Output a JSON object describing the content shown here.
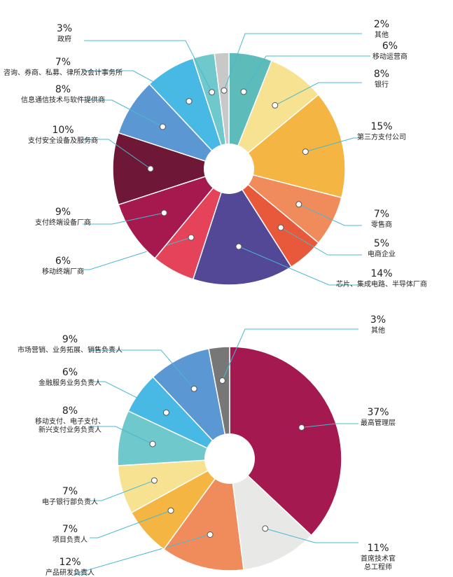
{
  "chart_data": [
    {
      "type": "pie",
      "slices": [
        {
          "percent": "6%",
          "value": 6,
          "lines": [
            "移动运营商"
          ],
          "color": "#5dbcb9"
        },
        {
          "percent": "8%",
          "value": 8,
          "lines": [
            "银行"
          ],
          "color": "#f6e291"
        },
        {
          "percent": "15%",
          "value": 15,
          "lines": [
            "第三方支付公司"
          ],
          "color": "#f4b542"
        },
        {
          "percent": "7%",
          "value": 7,
          "lines": [
            "零售商"
          ],
          "color": "#f08c5b"
        },
        {
          "percent": "5%",
          "value": 5,
          "lines": [
            "电商企业"
          ],
          "color": "#e8593c"
        },
        {
          "percent": "14%",
          "value": 14,
          "lines": [
            "芯片、集成电路、半导体厂商"
          ],
          "color": "#524896"
        },
        {
          "percent": "6%",
          "value": 6,
          "lines": [
            "移动终端厂商"
          ],
          "color": "#e5435a"
        },
        {
          "percent": "9%",
          "value": 9,
          "lines": [
            "支付终端设备厂商"
          ],
          "color": "#a6194f"
        },
        {
          "percent": "10%",
          "value": 10,
          "lines": [
            "支付安全设备及服务商"
          ],
          "color": "#6e1736"
        },
        {
          "percent": "8%",
          "value": 8,
          "lines": [
            "信息通信技术与软件提供商"
          ],
          "color": "#5b97d3"
        },
        {
          "percent": "7%",
          "value": 7,
          "lines": [
            "咨询、券商、私募、律所及会计事务所"
          ],
          "color": "#48b9e5"
        },
        {
          "percent": "3%",
          "value": 3,
          "lines": [
            "政府"
          ],
          "color": "#6fc8cb"
        },
        {
          "percent": "2%",
          "value": 2,
          "lines": [
            "其他"
          ],
          "color": "#c8c8c8"
        }
      ]
    },
    {
      "type": "pie",
      "slices": [
        {
          "percent": "37%",
          "value": 37,
          "lines": [
            "最高管理层"
          ],
          "color": "#a51951"
        },
        {
          "percent": "11%",
          "value": 11,
          "lines": [
            "首席技术官",
            "总工程师"
          ],
          "color": "#e8e9e7"
        },
        {
          "percent": "12%",
          "value": 12,
          "lines": [
            "产品研发负责人"
          ],
          "color": "#f08c5b"
        },
        {
          "percent": "7%",
          "value": 7,
          "lines": [
            "项目负责人"
          ],
          "color": "#f4b542"
        },
        {
          "percent": "7%",
          "value": 7,
          "lines": [
            "电子银行部负责人"
          ],
          "color": "#f6e291"
        },
        {
          "percent": "8%",
          "value": 8,
          "lines": [
            "移动支付、电子支付、",
            "新兴支付业务负责人"
          ],
          "color": "#6fc8cb"
        },
        {
          "percent": "6%",
          "value": 6,
          "lines": [
            "金融服务业务负责人"
          ],
          "color": "#48b9e5"
        },
        {
          "percent": "9%",
          "value": 9,
          "lines": [
            "市场营销、业务拓展、销售负责人"
          ],
          "color": "#5b97d3"
        },
        {
          "percent": "3%",
          "value": 3,
          "lines": [
            "其他"
          ],
          "color": "#777777"
        }
      ]
    }
  ]
}
